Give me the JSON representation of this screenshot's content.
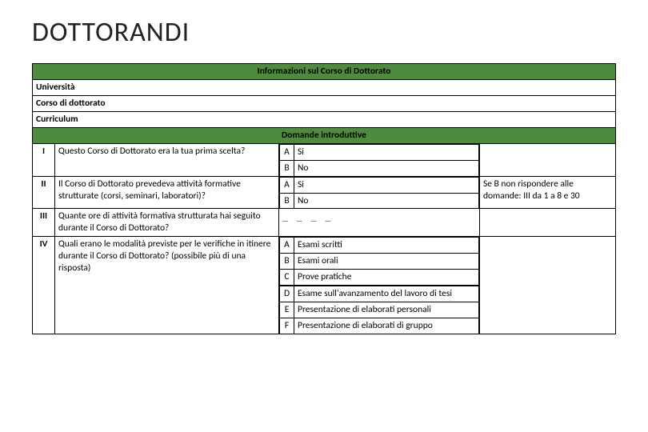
{
  "title": "DOTTORANDI",
  "colors": {
    "header_bg": "#4e8b3e",
    "border": "#000000",
    "bg": "#ffffff",
    "text": "#000000"
  },
  "section1": {
    "header": "Informazioni sul Corso di Dottorato",
    "rows": [
      "Università",
      "Corso di dottorato",
      "Curriculum"
    ]
  },
  "section2": {
    "header": "Domande introduttive",
    "rows": [
      {
        "num": "I",
        "question": "Questo Corso di Dottorato era la tua prima scelta?",
        "options": [
          {
            "key": "A",
            "label": "Si"
          },
          {
            "key": "B",
            "label": "No"
          }
        ],
        "note": ""
      },
      {
        "num": "II",
        "question": "Il Corso di Dottorato prevedeva attività formative strutturate (corsi, seminari, laboratori)?",
        "options": [
          {
            "key": "A",
            "label": "Si"
          },
          {
            "key": "B",
            "label": "No"
          }
        ],
        "note": "Se B non rispondere alle domande: III da 1 a 8 e 30"
      },
      {
        "num": "III",
        "question": "Quante ore di attività formativa strutturata hai seguito durante il Corso di Dottorato?",
        "blank": "_ _ _ _",
        "note": ""
      },
      {
        "num": "IV",
        "question": "Quali erano le modalità previste per le verifiche in itinere durante il Corso di Dottorato? (possibile più di una risposta)",
        "options_top": [
          {
            "key": "A",
            "label": "Esami scritti"
          },
          {
            "key": "B",
            "label": "Esami orali"
          },
          {
            "key": "C",
            "label": "Prove pratiche"
          }
        ],
        "options_bottom": [
          {
            "key": "D",
            "label": "Esame sull'avanzamento del lavoro di tesi"
          },
          {
            "key": "E",
            "label": "Presentazione di elaborati personali"
          },
          {
            "key": "F",
            "label": "Presentazione di elaborati di gruppo"
          }
        ],
        "note": ""
      }
    ]
  }
}
